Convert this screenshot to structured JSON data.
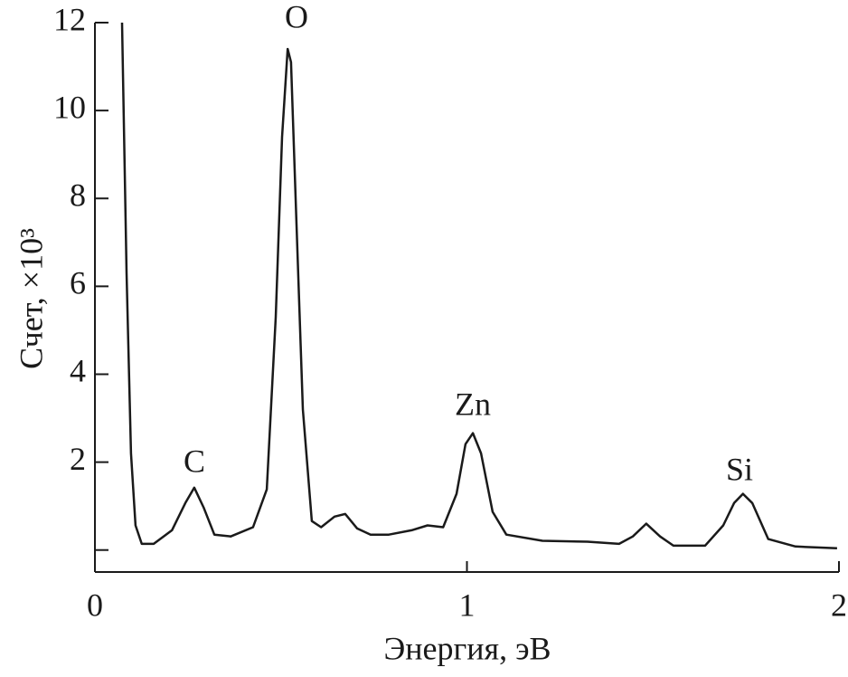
{
  "chart_data": {
    "type": "line",
    "x_label": "Энергия, эВ",
    "y_label": "Счет, ×10³",
    "annotations": [
      "C",
      "O",
      "Zn",
      "Si"
    ],
    "xlim": [
      0,
      2
    ],
    "xticks": [
      0,
      1,
      2
    ],
    "ylim": [
      -0.5,
      12
    ],
    "yticks": [
      {
        "value": 0,
        "label": null
      },
      2,
      4,
      6,
      8,
      10,
      12
    ],
    "color": "#1a1a1a",
    "x": [
      0.073,
      0.085,
      0.097,
      0.109,
      0.126,
      0.158,
      0.207,
      0.243,
      0.267,
      0.292,
      0.321,
      0.365,
      0.425,
      0.462,
      0.486,
      0.503,
      0.518,
      0.527,
      0.542,
      0.559,
      0.583,
      0.608,
      0.644,
      0.673,
      0.705,
      0.741,
      0.79,
      0.851,
      0.894,
      0.936,
      0.972,
      0.996,
      1.016,
      1.038,
      1.069,
      1.106,
      1.203,
      1.324,
      1.409,
      1.446,
      1.482,
      1.519,
      1.555,
      1.64,
      1.689,
      1.718,
      1.742,
      1.767,
      1.81,
      1.883,
      1.995
    ],
    "values": [
      12.0,
      6.3,
      2.2,
      0.56,
      0.14,
      0.14,
      0.45,
      1.07,
      1.42,
      0.97,
      0.35,
      0.31,
      0.52,
      1.38,
      5.3,
      9.4,
      11.4,
      11.1,
      7.4,
      3.2,
      0.66,
      0.52,
      0.76,
      0.82,
      0.49,
      0.35,
      0.35,
      0.45,
      0.56,
      0.52,
      1.28,
      2.41,
      2.66,
      2.2,
      0.87,
      0.35,
      0.21,
      0.19,
      0.14,
      0.31,
      0.6,
      0.31,
      0.1,
      0.1,
      0.56,
      1.07,
      1.28,
      1.07,
      0.25,
      0.08,
      0.04
    ]
  }
}
